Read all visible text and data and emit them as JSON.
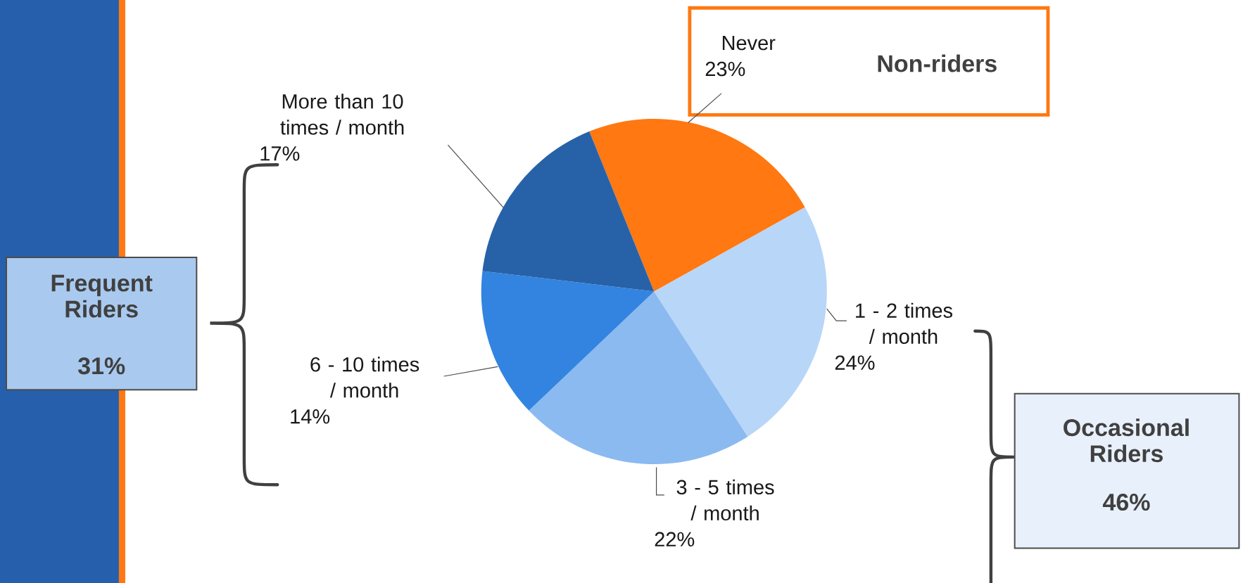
{
  "chart_data": {
    "type": "pie",
    "categories": [
      "Never",
      "1 - 2 times / month",
      "3 - 5 times / month",
      "6 - 10 times / month",
      "More than 10 times / month"
    ],
    "values": [
      23,
      24,
      22,
      14,
      17
    ],
    "value_labels": [
      "23%",
      "24%",
      "22%",
      "14%",
      "17%"
    ],
    "colors": [
      "#ff7811",
      "#b8d6f8",
      "#8bbaf0",
      "#3284e0",
      "#2762a8"
    ],
    "annotations": [
      "Non-riders",
      "Frequent Riders",
      "31%",
      "Occasional Riders",
      "46%"
    ]
  }
}
